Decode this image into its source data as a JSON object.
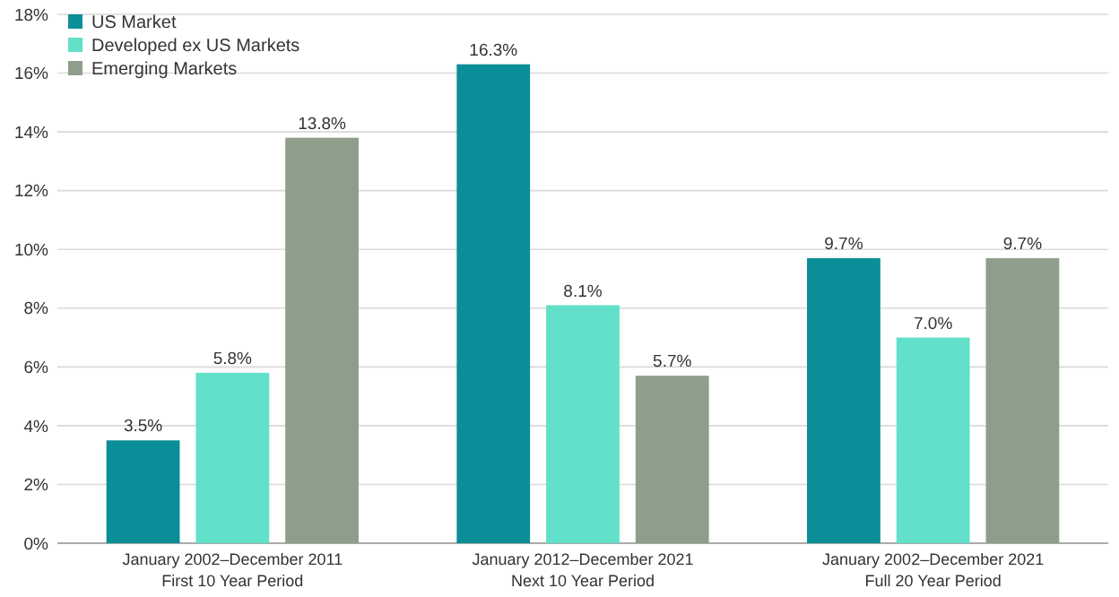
{
  "chart_data": {
    "type": "bar",
    "categories": [
      "January 2002–December 2011\nFirst 10 Year Period",
      "January 2012–December 2021\nNext 10 Year Period",
      "January 2002–December 2021\nFull 20 Year Period"
    ],
    "series": [
      {
        "name": "US Market",
        "color": "#0b8e97",
        "values": [
          3.5,
          16.3,
          9.7
        ],
        "value_labels": [
          "3.5%",
          "16.3%",
          "9.7%"
        ]
      },
      {
        "name": "Developed ex US Markets",
        "color": "#62e0c9",
        "values": [
          5.8,
          8.1,
          7.0
        ],
        "value_labels": [
          "5.8%",
          "8.1%",
          "7.0%"
        ]
      },
      {
        "name": "Emerging Markets",
        "color": "#8f9e8b",
        "values": [
          13.8,
          5.7,
          9.7
        ],
        "value_labels": [
          "13.8%",
          "5.7%",
          "9.7%"
        ]
      }
    ],
    "ylim": [
      0,
      18
    ],
    "yticks": [
      {
        "value": 0,
        "label": "0%"
      },
      {
        "value": 2,
        "label": "2%"
      },
      {
        "value": 4,
        "label": "4%"
      },
      {
        "value": 6,
        "label": "6%"
      },
      {
        "value": 8,
        "label": "8%"
      },
      {
        "value": 10,
        "label": "10%"
      },
      {
        "value": 12,
        "label": "12%"
      },
      {
        "value": 14,
        "label": "14%"
      },
      {
        "value": 16,
        "label": "16%"
      },
      {
        "value": 18,
        "label": "18%"
      }
    ],
    "grid": "y",
    "legend": "top left"
  }
}
